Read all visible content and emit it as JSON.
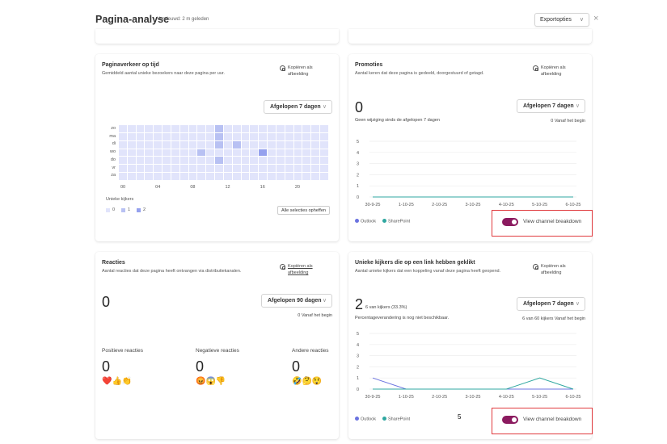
{
  "header": {
    "title": "Pagina-analyse",
    "updated": "Vernieuwd: 2 m geleden",
    "export_label": "Exportopties",
    "close_icon": "×"
  },
  "common": {
    "copy_line1": "Kopiëren als",
    "copy_line2": "afbeelding",
    "chevron": "∨"
  },
  "traffic": {
    "title": "Paginaverkeer op tijd",
    "subtitle": "Gemiddeld aantal unieke bezoekers naar deze pagina per uur.",
    "range": "Afgelopen 7 dagen",
    "row_labels": [
      "zo",
      "ma",
      "di",
      "wo",
      "do",
      "vr",
      "za"
    ],
    "x_labels": [
      "00",
      "04",
      "08",
      "12",
      "16",
      "20"
    ],
    "legend_title": "Unieke kijkers",
    "legend": [
      {
        "label": "0",
        "color": "#e1e4fb"
      },
      {
        "label": "1",
        "color": "#b8c1f3"
      },
      {
        "label": "2",
        "color": "#95a1ee"
      }
    ],
    "clear_label": "Alle selecties opheffen"
  },
  "promotions": {
    "title": "Promoties",
    "subtitle": "Aantal keren dat deze pagina is gedeeld, doorgestuurd of getagd.",
    "value": "0",
    "note": "Geen wijziging sinds de afgelopen 7 dagen",
    "range": "Afgelopen 7 dagen",
    "since_start": "0 Vanaf het begin",
    "legend": [
      {
        "label": "Outlook",
        "color": "#6b73e0"
      },
      {
        "label": "SharePoint",
        "color": "#2fa7a0"
      }
    ],
    "toggle_label": "View channel breakdown"
  },
  "reactions": {
    "title": "Reacties",
    "subtitle": "Aantal reacties dat deze pagina heeft ontvangen via distributiekanalen.",
    "value": "0",
    "range": "Afgelopen 90 dagen",
    "since_start": "0 Vanaf het begin",
    "groups": [
      {
        "label": "Positieve reacties",
        "value": "0",
        "emojis": "❤️👍👏"
      },
      {
        "label": "Negatieve reacties",
        "value": "0",
        "emojis": "😡😱👎"
      },
      {
        "label": "Andere reacties",
        "value": "0",
        "emojis": "🤣🤔😲"
      }
    ]
  },
  "link_clicks": {
    "title": "Unieke kijkers die op een link hebben geklikt",
    "subtitle": "Aantal unieke kijkers dat een koppeling vanaf deze pagina heeft geopend.",
    "value": "2",
    "value_detail": "6 van kijkers (33.3%)",
    "note": "Percentageverandering is nog niet beschikbaar.",
    "range": "Afgelopen 7 dagen",
    "since_start": "6 van 60 kijkers Vanaf het begin",
    "legend": [
      {
        "label": "Outlook",
        "color": "#6b73e0"
      },
      {
        "label": "SharePoint",
        "color": "#2fa7a0"
      }
    ],
    "toggle_label": "View channel breakdown"
  },
  "page_number": "5",
  "chart_data": [
    {
      "type": "heatmap",
      "title": "Paginaverkeer op tijd",
      "rows": [
        "zo",
        "ma",
        "di",
        "wo",
        "do",
        "vr",
        "za"
      ],
      "columns": [
        "00",
        "01",
        "02",
        "03",
        "04",
        "05",
        "06",
        "07",
        "08",
        "09",
        "10",
        "11",
        "12",
        "13",
        "14",
        "15",
        "16",
        "17",
        "18",
        "19",
        "20",
        "21",
        "22",
        "23"
      ],
      "nonzero_cells": [
        {
          "row": "zo",
          "hour": 11,
          "value": 1
        },
        {
          "row": "ma",
          "hour": 11,
          "value": 1
        },
        {
          "row": "di",
          "hour": 11,
          "value": 1
        },
        {
          "row": "di",
          "hour": 13,
          "value": 1
        },
        {
          "row": "wo",
          "hour": 9,
          "value": 1
        },
        {
          "row": "wo",
          "hour": 16,
          "value": 2
        },
        {
          "row": "do",
          "hour": 11,
          "value": 1
        }
      ],
      "legend_title": "Unieke kijkers"
    },
    {
      "type": "line",
      "title": "Promoties",
      "x": [
        "30-9-25",
        "1-10-25",
        "2-10-25",
        "3-10-25",
        "4-10-25",
        "5-10-25",
        "6-10-25"
      ],
      "series": [
        {
          "name": "Outlook",
          "values": [
            0,
            0,
            0,
            0,
            0,
            0,
            0
          ]
        },
        {
          "name": "SharePoint",
          "values": [
            0,
            0,
            0,
            0,
            0,
            0,
            0
          ]
        }
      ],
      "ylim": [
        0,
        5
      ],
      "yticks": [
        0,
        1,
        2,
        3,
        4,
        5
      ],
      "legend_position": "bottom-left"
    },
    {
      "type": "line",
      "title": "Unieke kijkers die op een link hebben geklikt",
      "x": [
        "30-9-25",
        "1-10-25",
        "2-10-25",
        "3-10-25",
        "4-10-25",
        "5-10-25",
        "6-10-25"
      ],
      "series": [
        {
          "name": "Outlook",
          "values": [
            1,
            0,
            0,
            0,
            0,
            0,
            0
          ]
        },
        {
          "name": "SharePoint",
          "values": [
            0,
            0,
            0,
            0,
            0,
            1,
            0
          ]
        }
      ],
      "ylim": [
        0,
        5
      ],
      "yticks": [
        0,
        1,
        2,
        3,
        4,
        5
      ],
      "legend_position": "bottom-left"
    }
  ]
}
